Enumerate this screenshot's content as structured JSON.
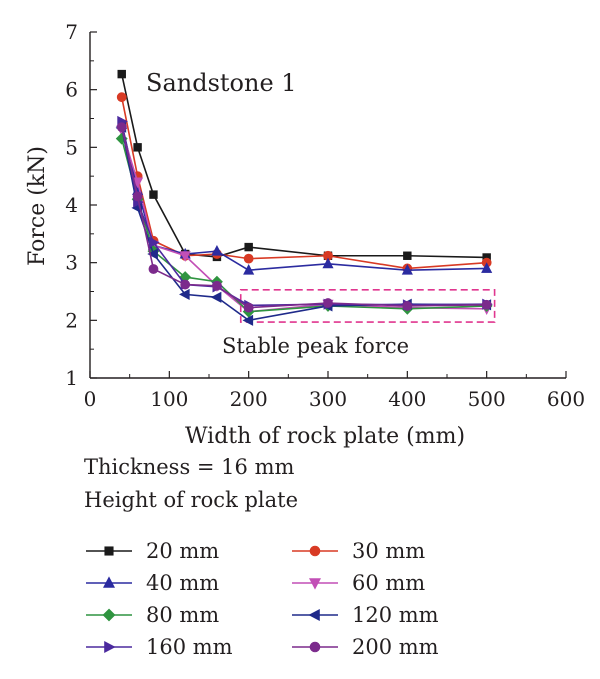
{
  "chart_data": {
    "type": "line",
    "annotations": {
      "panel_label": "Sandstone 1",
      "box_label": "Stable peak force",
      "box_color": "#e0368f"
    },
    "xlabel": "Width of rock plate (mm)",
    "ylabel": "Force (kN)",
    "xlim": [
      0,
      600
    ],
    "ylim": [
      1,
      7
    ],
    "xticks": [
      0,
      100,
      200,
      300,
      400,
      500,
      600
    ],
    "yticks": [
      1,
      2,
      3,
      4,
      5,
      6,
      7
    ],
    "grid": false,
    "legend": {
      "placement": "bottom",
      "title": "Height of rock plate"
    },
    "x": [
      40,
      60,
      80,
      120,
      160,
      200,
      300,
      400,
      500
    ],
    "series": [
      {
        "name": "20 mm",
        "color": "#1a1a1a",
        "marker": "square",
        "values": [
          6.27,
          5.0,
          4.18,
          3.15,
          3.1,
          3.27,
          3.12,
          3.12,
          3.09
        ]
      },
      {
        "name": "30 mm",
        "color": "#d83a24",
        "marker": "circle",
        "values": [
          5.87,
          4.5,
          3.38,
          3.12,
          3.15,
          3.07,
          3.12,
          2.9,
          3.0
        ]
      },
      {
        "name": "40 mm",
        "color": "#2b2ba0",
        "marker": "triangle-up",
        "values": [
          5.4,
          4.25,
          3.3,
          3.15,
          3.2,
          2.87,
          2.98,
          2.87,
          2.9
        ]
      },
      {
        "name": "60 mm",
        "color": "#c24fb6",
        "marker": "triangle-down",
        "values": [
          5.3,
          4.4,
          3.3,
          3.12,
          2.6,
          2.15,
          2.28,
          2.22,
          2.2
        ]
      },
      {
        "name": "80 mm",
        "color": "#2f9440",
        "marker": "diamond",
        "values": [
          5.15,
          4.1,
          3.2,
          2.75,
          2.67,
          2.15,
          2.25,
          2.2,
          2.25
        ]
      },
      {
        "name": "120 mm",
        "color": "#1f2a8a",
        "marker": "triangle-left",
        "values": [
          5.35,
          3.95,
          3.15,
          2.45,
          2.4,
          2.0,
          2.25,
          2.28,
          2.27
        ]
      },
      {
        "name": "160 mm",
        "color": "#4b2a9e",
        "marker": "triangle-right",
        "values": [
          5.45,
          4.05,
          3.35,
          2.62,
          2.58,
          2.26,
          2.28,
          2.27,
          2.28
        ]
      },
      {
        "name": "200 mm",
        "color": "#7b2a8c",
        "marker": "circle",
        "values": [
          5.35,
          4.15,
          2.89,
          2.62,
          2.6,
          2.22,
          2.3,
          2.25,
          2.27
        ]
      }
    ]
  },
  "info": {
    "thickness": "Thickness = 16 mm",
    "height_title": "Height of rock plate"
  }
}
